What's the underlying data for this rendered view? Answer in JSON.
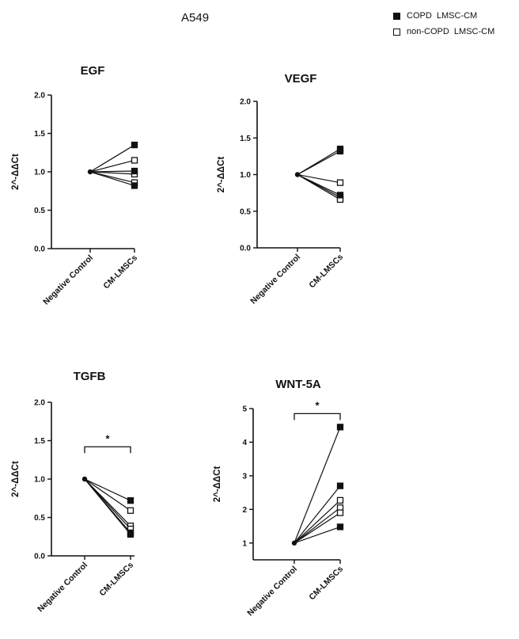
{
  "figure_title": "A549",
  "legend": [
    {
      "label": "COPD  LMSC-CM",
      "marker": "filled-square"
    },
    {
      "label": "non-COPD  LMSC-CM",
      "marker": "open-square"
    }
  ],
  "colors": {
    "ink": "#111111",
    "background": "#ffffff"
  },
  "chart_data": [
    {
      "type": "line",
      "title": "EGF",
      "xlabel": "",
      "ylabel": "2^-ΔΔCt",
      "categories": [
        "Negative Control",
        "CM-LMSCs"
      ],
      "ylim": [
        0,
        2.0
      ],
      "yticks": [
        0.0,
        0.5,
        1.0,
        1.5,
        2.0
      ],
      "tick_decimals": 1,
      "grid": false,
      "significance": null,
      "series": [
        {
          "group": "COPD",
          "values": [
            1.0,
            1.35
          ]
        },
        {
          "group": "COPD",
          "values": [
            1.0,
            1.01
          ]
        },
        {
          "group": "COPD",
          "values": [
            1.0,
            0.82
          ]
        },
        {
          "group": "non-COPD",
          "values": [
            1.0,
            1.15
          ]
        },
        {
          "group": "non-COPD",
          "values": [
            1.0,
            0.97
          ]
        },
        {
          "group": "non-COPD",
          "values": [
            1.0,
            0.86
          ]
        }
      ]
    },
    {
      "type": "line",
      "title": "VEGF",
      "xlabel": "",
      "ylabel": "2^-ΔΔCt",
      "categories": [
        "Negative Control",
        "CM-LMSCs"
      ],
      "ylim": [
        0,
        2.0
      ],
      "yticks": [
        0.0,
        0.5,
        1.0,
        1.5,
        2.0
      ],
      "tick_decimals": 1,
      "grid": false,
      "significance": null,
      "series": [
        {
          "group": "COPD",
          "values": [
            1.0,
            1.35
          ]
        },
        {
          "group": "COPD",
          "values": [
            1.0,
            1.32
          ]
        },
        {
          "group": "COPD",
          "values": [
            1.0,
            0.72
          ]
        },
        {
          "group": "non-COPD",
          "values": [
            1.0,
            0.89
          ]
        },
        {
          "group": "non-COPD",
          "values": [
            1.0,
            0.69
          ]
        },
        {
          "group": "non-COPD",
          "values": [
            1.0,
            0.66
          ]
        }
      ]
    },
    {
      "type": "line",
      "title": "TGFB",
      "xlabel": "",
      "ylabel": "2^-ΔΔCt",
      "categories": [
        "Negative Control",
        "CM-LMSCs"
      ],
      "ylim": [
        0,
        2.0
      ],
      "yticks": [
        0.0,
        0.5,
        1.0,
        1.5,
        2.0
      ],
      "tick_decimals": 1,
      "grid": false,
      "significance": {
        "label": "*",
        "y": 1.42
      },
      "series": [
        {
          "group": "COPD",
          "values": [
            1.0,
            0.72
          ]
        },
        {
          "group": "COPD",
          "values": [
            1.0,
            0.3
          ]
        },
        {
          "group": "COPD",
          "values": [
            1.0,
            0.28
          ]
        },
        {
          "group": "non-COPD",
          "values": [
            1.0,
            0.59
          ]
        },
        {
          "group": "non-COPD",
          "values": [
            1.0,
            0.39
          ]
        },
        {
          "group": "non-COPD",
          "values": [
            1.0,
            0.35
          ]
        }
      ]
    },
    {
      "type": "line",
      "title": "WNT-5A",
      "xlabel": "",
      "ylabel": "2^-ΔΔCt",
      "categories": [
        "Negative Control",
        "CM-LMSCs"
      ],
      "ylim": [
        0.5,
        5
      ],
      "yticks": [
        1,
        2,
        3,
        4,
        5
      ],
      "tick_decimals": 0,
      "grid": false,
      "significance": {
        "label": "*",
        "y": 4.85
      },
      "series": [
        {
          "group": "COPD",
          "values": [
            1.0,
            4.45
          ]
        },
        {
          "group": "COPD",
          "values": [
            1.0,
            2.7
          ]
        },
        {
          "group": "COPD",
          "values": [
            1.0,
            1.48
          ]
        },
        {
          "group": "non-COPD",
          "values": [
            1.0,
            2.27
          ]
        },
        {
          "group": "non-COPD",
          "values": [
            1.0,
            2.05
          ]
        },
        {
          "group": "non-COPD",
          "values": [
            1.0,
            1.9
          ]
        }
      ]
    }
  ]
}
